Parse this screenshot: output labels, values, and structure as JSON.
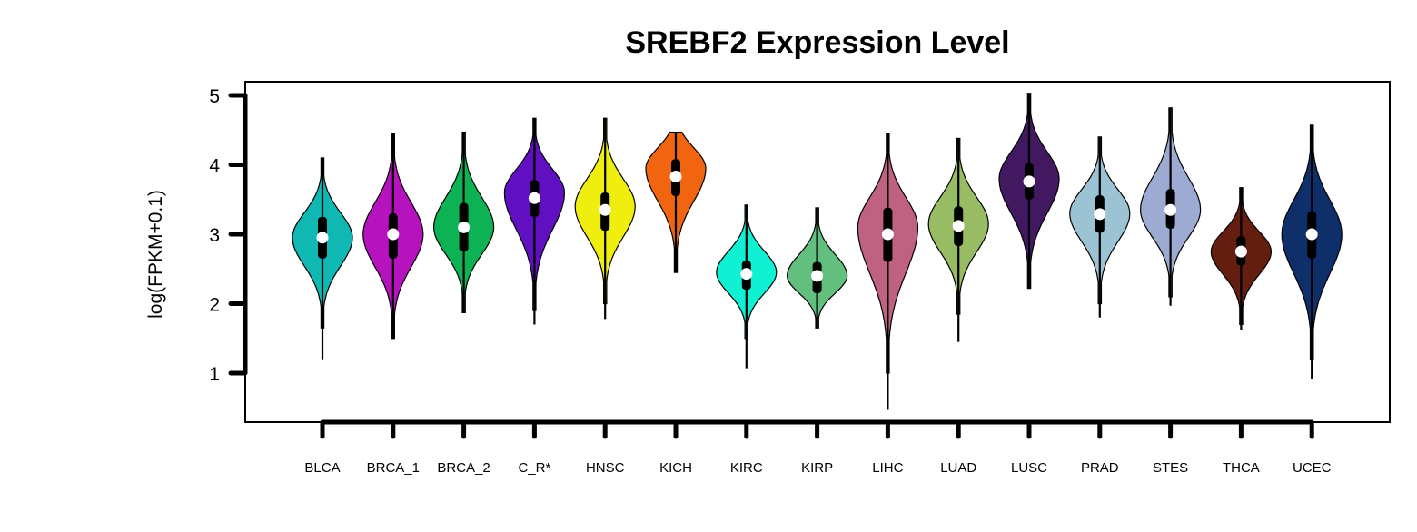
{
  "chart_data": {
    "type": "violin",
    "title": "SREBF2 Expression Level",
    "xlabel": "",
    "ylabel": "log(FPKM+0.1)",
    "yticks": [
      1,
      2,
      3,
      4,
      5
    ],
    "ylim": [
      0.3,
      5.2
    ],
    "categories": [
      "BLCA",
      "BRCA_1",
      "BRCA_2",
      "C_R*",
      "HNSC",
      "KICH",
      "KIRC",
      "KIRP",
      "LIHC",
      "LUAD",
      "LUSC",
      "PRAD",
      "STES",
      "THCA",
      "UCEC"
    ],
    "colors": [
      "#10B8B3",
      "#B612BE",
      "#0CB254",
      "#6010C0",
      "#F0EE0F",
      "#F26510",
      "#10F0D2",
      "#62BF7E",
      "#BF6180",
      "#97BC63",
      "#421960",
      "#9CC3D4",
      "#9DAAD2",
      "#631E0F",
      "#0E2F6A"
    ],
    "series": [
      {
        "category": "BLCA",
        "min": 1.2,
        "max": 4.1,
        "violin_min": 1.65,
        "violin_max": 4.1,
        "q1": 2.65,
        "median": 2.95,
        "q3": 3.25,
        "mode": 2.95
      },
      {
        "category": "BRCA_1",
        "min": 1.5,
        "max": 4.45,
        "violin_min": 1.5,
        "violin_max": 4.45,
        "q1": 2.65,
        "median": 3.0,
        "q3": 3.3,
        "mode": 3.0
      },
      {
        "category": "BRCA_2",
        "min": 1.87,
        "max": 4.47,
        "violin_min": 1.87,
        "violin_max": 4.47,
        "q1": 2.75,
        "median": 3.1,
        "q3": 3.45,
        "mode": 3.1
      },
      {
        "category": "C_R*",
        "min": 1.7,
        "max": 4.67,
        "violin_min": 1.9,
        "violin_max": 4.67,
        "q1": 3.25,
        "median": 3.52,
        "q3": 3.78,
        "mode": 3.6
      },
      {
        "category": "HNSC",
        "min": 1.78,
        "max": 4.67,
        "violin_min": 2.0,
        "violin_max": 4.67,
        "q1": 3.05,
        "median": 3.35,
        "q3": 3.6,
        "mode": 3.4
      },
      {
        "category": "KICH",
        "min": 2.45,
        "max": 4.47,
        "violin_min": 2.45,
        "violin_max": 4.47,
        "q1": 3.55,
        "median": 3.83,
        "q3": 4.08,
        "mode": 3.95
      },
      {
        "category": "KIRC",
        "min": 1.07,
        "max": 3.42,
        "violin_min": 1.5,
        "violin_max": 3.42,
        "q1": 2.2,
        "median": 2.43,
        "q3": 2.62,
        "mode": 2.45
      },
      {
        "category": "KIRP",
        "min": 1.65,
        "max": 3.38,
        "violin_min": 1.65,
        "violin_max": 3.38,
        "q1": 2.15,
        "median": 2.4,
        "q3": 2.6,
        "mode": 2.4
      },
      {
        "category": "LIHC",
        "min": 0.47,
        "max": 4.45,
        "violin_min": 1.0,
        "violin_max": 4.45,
        "q1": 2.6,
        "median": 3.0,
        "q3": 3.38,
        "mode": 3.1
      },
      {
        "category": "LUAD",
        "min": 1.45,
        "max": 4.38,
        "violin_min": 1.85,
        "violin_max": 4.38,
        "q1": 2.83,
        "median": 3.12,
        "q3": 3.4,
        "mode": 3.15
      },
      {
        "category": "LUSC",
        "min": 2.22,
        "max": 5.03,
        "violin_min": 2.22,
        "violin_max": 5.03,
        "q1": 3.5,
        "median": 3.76,
        "q3": 4.02,
        "mode": 3.8
      },
      {
        "category": "PRAD",
        "min": 1.8,
        "max": 4.4,
        "violin_min": 2.0,
        "violin_max": 4.4,
        "q1": 3.02,
        "median": 3.29,
        "q3": 3.56,
        "mode": 3.3
      },
      {
        "category": "STES",
        "min": 1.97,
        "max": 4.82,
        "violin_min": 2.1,
        "violin_max": 4.82,
        "q1": 3.08,
        "median": 3.35,
        "q3": 3.65,
        "mode": 3.35
      },
      {
        "category": "THCA",
        "min": 1.62,
        "max": 3.67,
        "violin_min": 1.7,
        "violin_max": 3.67,
        "q1": 2.55,
        "median": 2.75,
        "q3": 2.97,
        "mode": 2.75
      },
      {
        "category": "UCEC",
        "min": 0.92,
        "max": 4.57,
        "violin_min": 1.2,
        "violin_max": 4.57,
        "q1": 2.65,
        "median": 3.0,
        "q3": 3.33,
        "mode": 3.0
      }
    ],
    "grid": false,
    "legend": "none"
  }
}
